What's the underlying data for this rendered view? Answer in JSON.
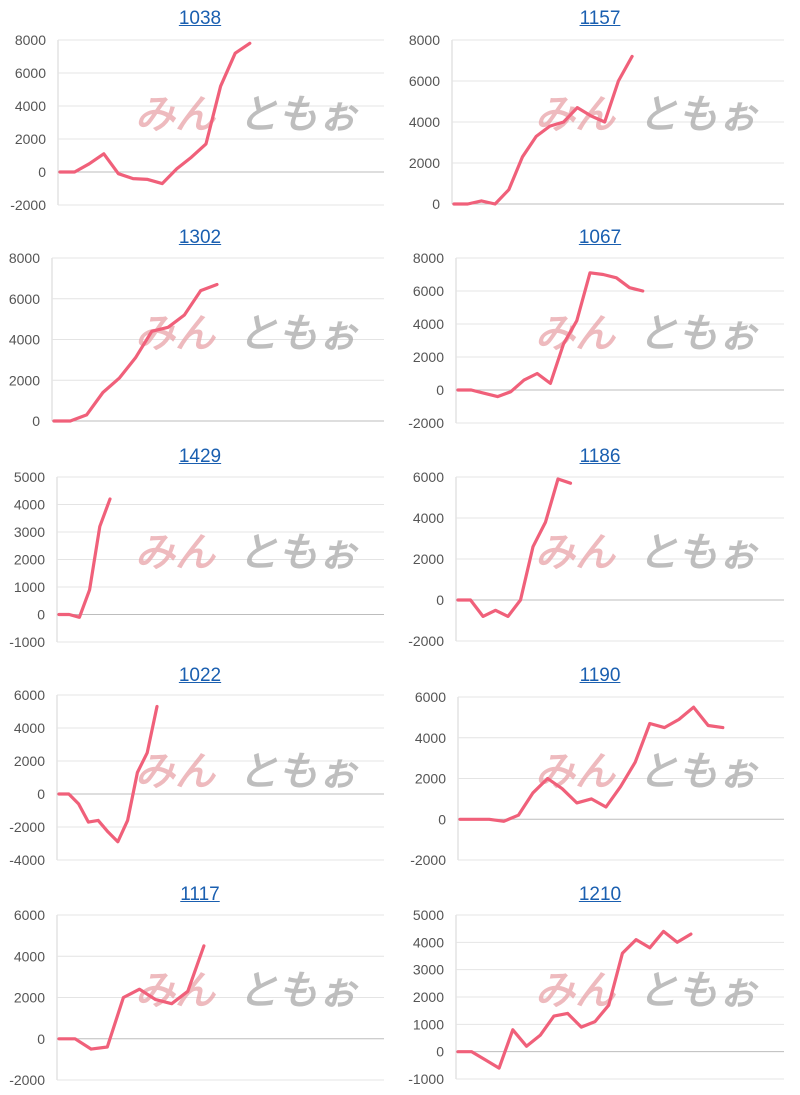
{
  "colors": {
    "line": "#f0607a",
    "title_link": "#1a5fb0",
    "watermark_left": "#e8a3a8",
    "watermark_right": "#a8a8a8"
  },
  "watermark": {
    "left": "みん",
    "right": "ともぉ"
  },
  "chart_data": [
    {
      "type": "line",
      "title": "1038",
      "yticks": [
        -2000,
        0,
        2000,
        4000,
        6000,
        8000
      ],
      "ylim": [
        -2000,
        8000
      ],
      "series": [
        {
          "values": [
            0,
            0,
            500,
            1100,
            -100,
            -400,
            -450,
            -700,
            200,
            900,
            1700,
            5200,
            7200,
            7800
          ]
        }
      ]
    },
    {
      "type": "line",
      "title": "1157",
      "yticks": [
        0,
        2000,
        4000,
        6000,
        8000
      ],
      "ylim": [
        0,
        8000
      ],
      "series": [
        {
          "values": [
            0,
            0,
            150,
            0,
            700,
            2300,
            3300,
            3800,
            4000,
            4700,
            4300,
            4000,
            6000,
            7200
          ]
        }
      ]
    },
    {
      "type": "line",
      "title": "1302",
      "yticks": [
        0,
        2000,
        4000,
        6000,
        8000
      ],
      "ylim": [
        0,
        8000
      ],
      "series": [
        {
          "values": [
            0,
            0,
            300,
            1400,
            2100,
            3100,
            4400,
            4600,
            5200,
            6400,
            6700
          ]
        }
      ]
    },
    {
      "type": "line",
      "title": "1067",
      "yticks": [
        -2000,
        0,
        2000,
        4000,
        6000,
        8000
      ],
      "ylim": [
        -2000,
        8000
      ],
      "series": [
        {
          "values": [
            0,
            0,
            -200,
            -400,
            -100,
            600,
            1000,
            400,
            2800,
            4200,
            7100,
            7000,
            6800,
            6200,
            6000
          ]
        }
      ]
    },
    {
      "type": "line",
      "title": "1429",
      "yticks": [
        -1000,
        0,
        1000,
        2000,
        3000,
        4000,
        5000
      ],
      "ylim": [
        -1000,
        5000
      ],
      "series": [
        {
          "values": [
            0,
            0,
            -100,
            900,
            3200,
            4200
          ]
        }
      ]
    },
    {
      "type": "line",
      "title": "1186",
      "yticks": [
        -2000,
        0,
        2000,
        4000,
        6000
      ],
      "ylim": [
        -2000,
        6000
      ],
      "series": [
        {
          "values": [
            0,
            0,
            -800,
            -500,
            -800,
            0,
            2600,
            3800,
            5900,
            5700
          ]
        }
      ]
    },
    {
      "type": "line",
      "title": "1022",
      "yticks": [
        -4000,
        -2000,
        0,
        2000,
        4000,
        6000
      ],
      "ylim": [
        -4000,
        6000
      ],
      "series": [
        {
          "values": [
            0,
            0,
            -600,
            -1700,
            -1600,
            -2300,
            -2900,
            -1600,
            1300,
            2500,
            5300
          ]
        }
      ]
    },
    {
      "type": "line",
      "title": "1190",
      "yticks": [
        -2000,
        0,
        2000,
        4000,
        6000
      ],
      "ylim": [
        -2000,
        6000
      ],
      "series": [
        {
          "values": [
            0,
            0,
            0,
            -100,
            200,
            1300,
            2000,
            1500,
            800,
            1000,
            600,
            1600,
            2800,
            4700,
            4500,
            4900,
            5500,
            4600,
            4500
          ]
        }
      ]
    },
    {
      "type": "line",
      "title": "1117",
      "yticks": [
        -2000,
        0,
        2000,
        4000,
        6000
      ],
      "ylim": [
        -2000,
        6000
      ],
      "series": [
        {
          "values": [
            0,
            0,
            -500,
            -400,
            2000,
            2400,
            1900,
            1700,
            2300,
            4500
          ]
        }
      ]
    },
    {
      "type": "line",
      "title": "1210",
      "yticks": [
        -1000,
        0,
        1000,
        2000,
        3000,
        4000,
        5000
      ],
      "ylim": [
        -1000,
        5000
      ],
      "series": [
        {
          "values": [
            0,
            0,
            -300,
            -600,
            800,
            200,
            600,
            1300,
            1400,
            900,
            1100,
            1700,
            3600,
            4100,
            3800,
            4400,
            4000,
            4300
          ]
        }
      ]
    }
  ]
}
